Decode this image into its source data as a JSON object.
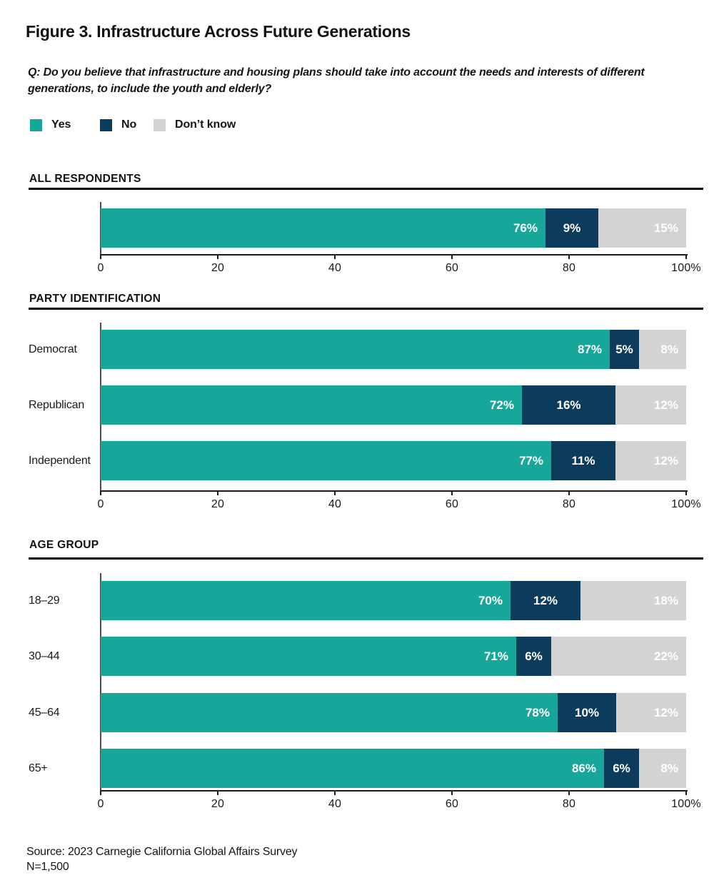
{
  "title": "Figure 3. Infrastructure Across Future Generations",
  "question": {
    "lines": [
      "Q: Do you believe that infrastructure and housing plans should take into account the needs and interests of different",
      "generations, to include the youth and elderly?"
    ]
  },
  "legend": {
    "items": [
      {
        "key": "yes",
        "label": "Yes"
      },
      {
        "key": "no",
        "label": "No"
      },
      {
        "key": "dk",
        "label": "Don’t know"
      }
    ]
  },
  "colors": {
    "yes": "#17a69a",
    "no": "#0d3b5c",
    "dk": "#d1d3d4",
    "rule": "#000000",
    "axis": "#1c1c1c",
    "text": "#111111"
  },
  "axis": {
    "ticks": [
      "0",
      "20",
      "40",
      "60",
      "80",
      "100%"
    ],
    "min": 0,
    "max": 100
  },
  "chart_data": [
    {
      "type": "bar",
      "orientation": "horizontal",
      "stacked": true,
      "title": "ALL RESPONDENTS",
      "categories": [
        ""
      ],
      "series": [
        {
          "name": "Yes",
          "values": [
            76
          ]
        },
        {
          "name": "No",
          "values": [
            9
          ]
        },
        {
          "name": "Don’t know",
          "values": [
            15
          ]
        }
      ],
      "xlim": [
        0,
        100
      ],
      "xticks": [
        "0",
        "20",
        "40",
        "60",
        "80",
        "100%"
      ],
      "grid": false,
      "legend_position": "top"
    },
    {
      "type": "bar",
      "orientation": "horizontal",
      "stacked": true,
      "title": "PARTY IDENTIFICATION",
      "categories": [
        "Democrat",
        "Republican",
        "Independent"
      ],
      "series": [
        {
          "name": "Yes",
          "values": [
            87,
            72,
            77
          ]
        },
        {
          "name": "No",
          "values": [
            5,
            16,
            11
          ]
        },
        {
          "name": "Don’t know",
          "values": [
            8,
            12,
            12
          ]
        }
      ],
      "xlim": [
        0,
        100
      ],
      "xticks": [
        "0",
        "20",
        "40",
        "60",
        "80",
        "100%"
      ],
      "grid": false,
      "legend_position": "top"
    },
    {
      "type": "bar",
      "orientation": "horizontal",
      "stacked": true,
      "title": "AGE GROUP",
      "categories": [
        "18–29",
        "30–44",
        "45–64",
        "65+"
      ],
      "series": [
        {
          "name": "Yes",
          "values": [
            70,
            71,
            78,
            86
          ]
        },
        {
          "name": "No",
          "values": [
            12,
            6,
            10,
            6
          ]
        },
        {
          "name": "Don’t know",
          "values": [
            18,
            22,
            12,
            8
          ]
        }
      ],
      "xlim": [
        0,
        100
      ],
      "xticks": [
        "0",
        "20",
        "40",
        "60",
        "80",
        "100%"
      ],
      "grid": false,
      "legend_position": "top"
    }
  ],
  "footer": {
    "lines": [
      "Source: 2023 Carnegie California Global Affairs Survey",
      "N=1,500"
    ]
  }
}
